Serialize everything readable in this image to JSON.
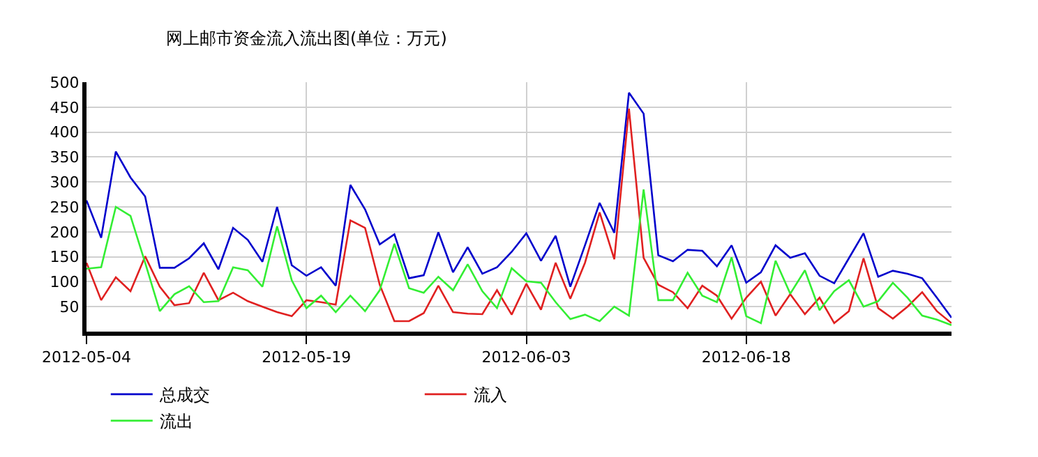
{
  "chart_data": {
    "type": "line",
    "title": "网上邮市资金流入流出图(单位：万元)",
    "x": [
      "2012-05-04",
      "2012-05-05",
      "2012-05-06",
      "2012-05-07",
      "2012-05-08",
      "2012-05-09",
      "2012-05-10",
      "2012-05-11",
      "2012-05-12",
      "2012-05-13",
      "2012-05-14",
      "2012-05-15",
      "2012-05-16",
      "2012-05-17",
      "2012-05-18",
      "2012-05-19",
      "2012-05-20",
      "2012-05-21",
      "2012-05-22",
      "2012-05-23",
      "2012-05-24",
      "2012-05-25",
      "2012-05-26",
      "2012-05-27",
      "2012-05-28",
      "2012-05-29",
      "2012-05-30",
      "2012-05-31",
      "2012-06-01",
      "2012-06-02",
      "2012-06-03",
      "2012-06-04",
      "2012-06-05",
      "2012-06-06",
      "2012-06-07",
      "2012-06-08",
      "2012-06-09",
      "2012-06-10",
      "2012-06-11",
      "2012-06-12",
      "2012-06-13",
      "2012-06-14",
      "2012-06-15",
      "2012-06-16",
      "2012-06-17",
      "2012-06-18",
      "2012-06-19",
      "2012-06-20",
      "2012-06-21",
      "2012-06-22",
      "2012-06-23",
      "2012-06-24",
      "2012-06-25",
      "2012-06-26",
      "2012-06-27",
      "2012-06-28",
      "2012-06-29",
      "2012-06-30",
      "2012-07-01",
      "2012-07-02"
    ],
    "series": [
      {
        "name": "总成交",
        "color": "#0000cc",
        "values": [
          263,
          188,
          361,
          309,
          271,
          128,
          128,
          147,
          177,
          125,
          208,
          184,
          140,
          250,
          133,
          112,
          129,
          92,
          294,
          245,
          175,
          195,
          107,
          113,
          199,
          119,
          169,
          116,
          129,
          160,
          197,
          142,
          192,
          90,
          173,
          258,
          198,
          479,
          437,
          153,
          141,
          164,
          162,
          131,
          173,
          98,
          119,
          173,
          148,
          157,
          112,
          97,
          147,
          197,
          110,
          122,
          116,
          107,
          68,
          28
        ]
      },
      {
        "name": "流入",
        "color": "#e02020",
        "values": [
          138,
          63,
          109,
          81,
          151,
          90,
          53,
          57,
          118,
          63,
          78,
          61,
          50,
          39,
          31,
          63,
          59,
          54,
          223,
          208,
          94,
          21,
          21,
          37,
          92,
          39,
          36,
          35,
          83,
          34,
          96,
          44,
          138,
          66,
          138,
          239,
          145,
          447,
          148,
          94,
          79,
          47,
          92,
          72,
          26,
          68,
          100,
          32,
          75,
          35,
          68,
          17,
          41,
          147,
          47,
          26,
          50,
          79,
          41,
          17
        ]
      },
      {
        "name": "流出",
        "color": "#33ee33",
        "values": [
          126,
          129,
          250,
          232,
          138,
          41,
          75,
          91,
          59,
          61,
          129,
          123,
          90,
          211,
          103,
          47,
          72,
          39,
          72,
          41,
          83,
          176,
          87,
          78,
          110,
          83,
          135,
          81,
          47,
          127,
          101,
          98,
          59,
          25,
          34,
          21,
          50,
          32,
          285,
          63,
          63,
          118,
          72,
          59,
          149,
          31,
          17,
          142,
          76,
          123,
          43,
          81,
          103,
          50,
          61,
          98,
          68,
          32,
          24,
          13
        ]
      }
    ],
    "xlim": [
      "2012-05-04",
      "2012-07-02"
    ],
    "xticks": [
      "2012-05-04",
      "2012-05-19",
      "2012-06-03",
      "2012-06-18"
    ],
    "ylim": [
      0,
      500
    ],
    "yticks": [
      50,
      100,
      150,
      200,
      250,
      300,
      350,
      400,
      450,
      500
    ],
    "grid": true,
    "legend": "bottom",
    "marker": "none",
    "line_style": "solid"
  }
}
